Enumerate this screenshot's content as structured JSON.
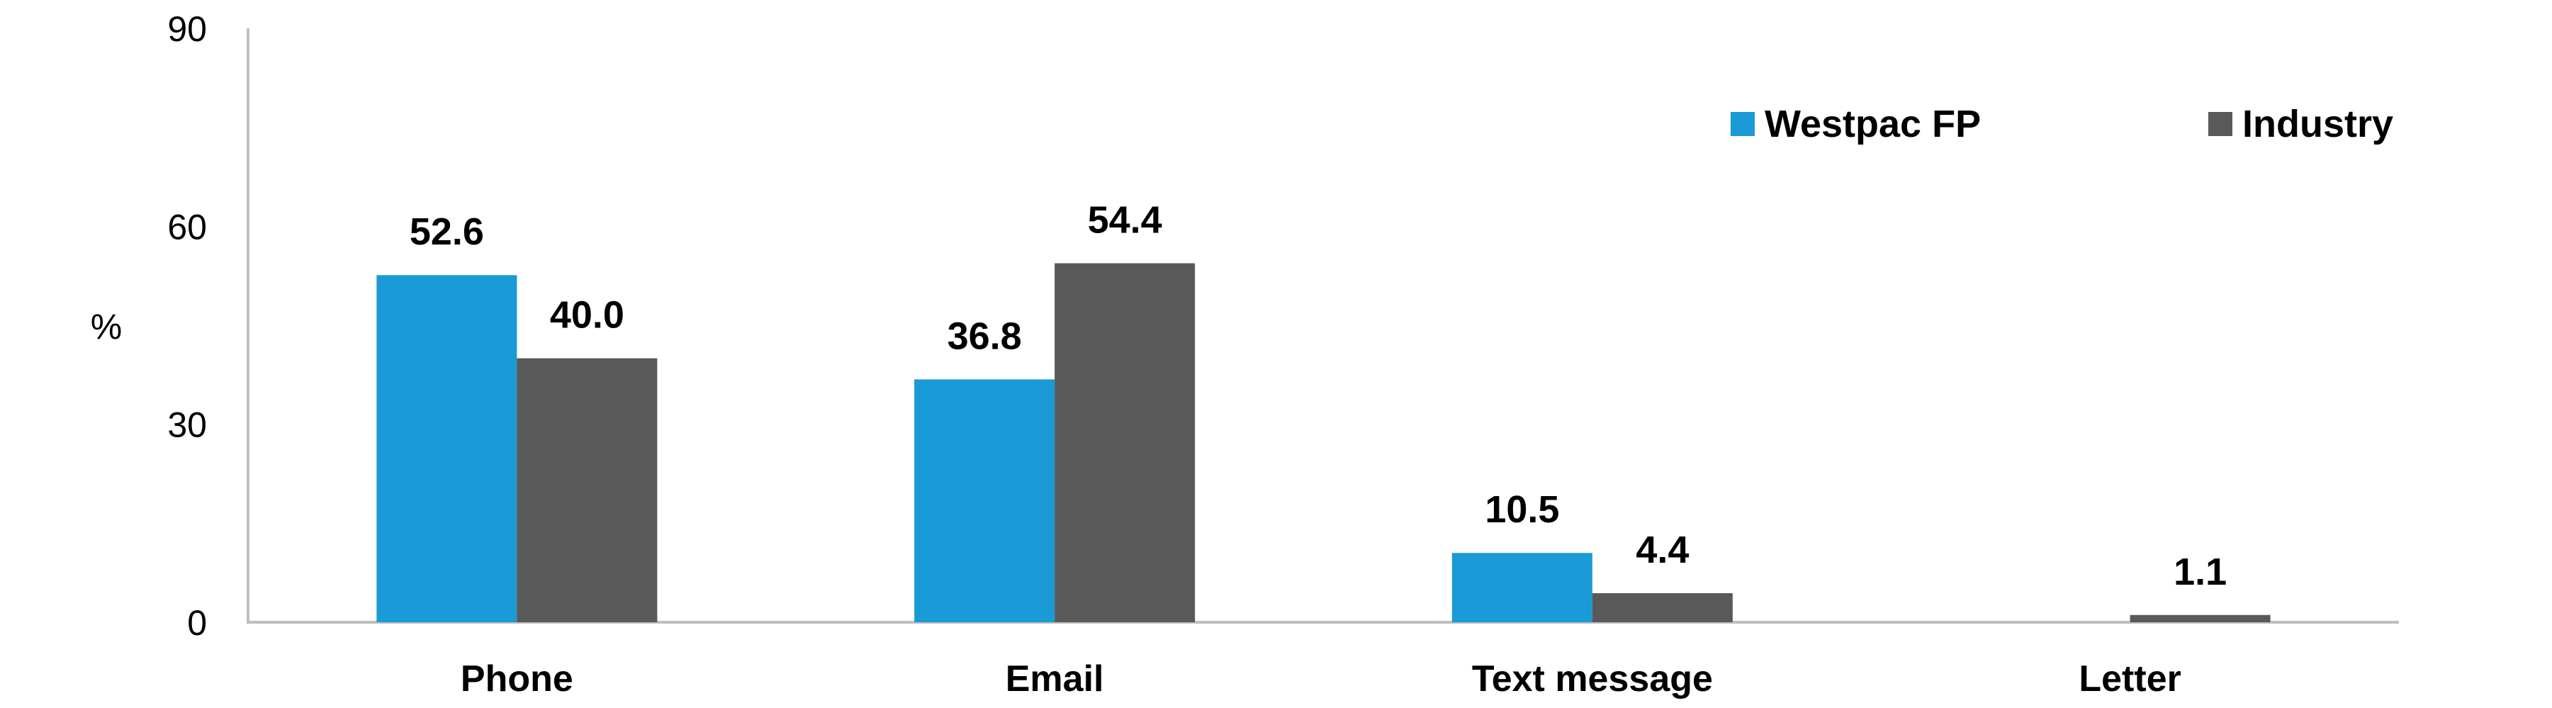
{
  "chart_data": {
    "type": "bar",
    "categories": [
      "Phone",
      "Email",
      "Text message",
      "Letter"
    ],
    "series": [
      {
        "name": "Westpac FP",
        "color": "#1a9ad6",
        "values": [
          52.6,
          36.8,
          10.5,
          null
        ],
        "labels": [
          "52.6",
          "36.8",
          "10.5",
          ""
        ]
      },
      {
        "name": "Industry",
        "color": "#595959",
        "values": [
          40.0,
          54.4,
          4.4,
          1.1
        ],
        "labels": [
          "40.0",
          "54.4",
          "4.4",
          "1.1"
        ]
      }
    ],
    "ylabel": "%",
    "ylim": [
      0,
      90
    ],
    "yticks": [
      0,
      30,
      60,
      90
    ],
    "grid": false,
    "legend_position": "top-right"
  }
}
